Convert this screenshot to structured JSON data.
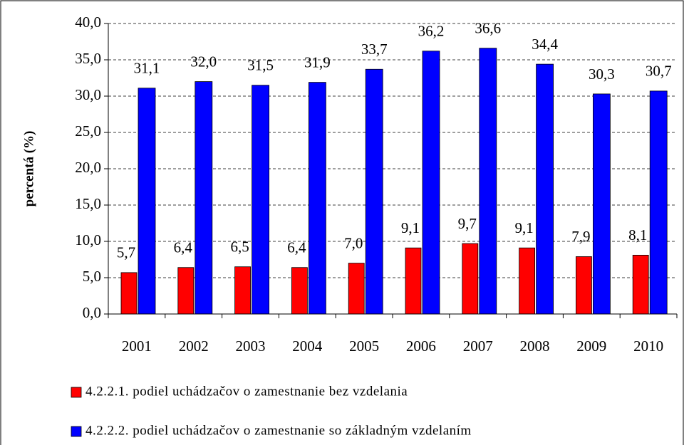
{
  "chart_data": {
    "type": "bar",
    "y_label": "percentá (%)",
    "categories": [
      "2001",
      "2002",
      "2003",
      "2004",
      "2005",
      "2006",
      "2007",
      "2008",
      "2009",
      "2010"
    ],
    "series": [
      {
        "name": "4.2.2.1. podiel uchádzačov o zamestnanie bez vzdelania",
        "color": "#ff0000",
        "values": [
          5.7,
          6.4,
          6.5,
          6.4,
          7.0,
          9.1,
          9.7,
          9.1,
          7.9,
          8.1
        ],
        "value_labels": [
          "5,7",
          "6,4",
          "6,5",
          "6,4",
          "7,0",
          "9,1",
          "9,7",
          "9,1",
          "7,9",
          "8,1"
        ]
      },
      {
        "name": "4.2.2.2. podiel uchádzačov o zamestnanie so základným vzdelaním",
        "color": "#0000ff",
        "values": [
          31.1,
          32.0,
          31.5,
          31.9,
          33.7,
          36.2,
          36.6,
          34.4,
          30.3,
          30.7
        ],
        "value_labels": [
          "31,1",
          "32,0",
          "31,5",
          "31,9",
          "33,7",
          "36,2",
          "36,6",
          "34,4",
          "30,3",
          "30,7"
        ]
      }
    ],
    "ylim": [
      0,
      40
    ],
    "yticks": [
      {
        "value": 0,
        "label": "0,0"
      },
      {
        "value": 5,
        "label": "5,0"
      },
      {
        "value": 10,
        "label": "10,0"
      },
      {
        "value": 15,
        "label": "15,0"
      },
      {
        "value": 20,
        "label": "20,0"
      },
      {
        "value": 25,
        "label": "25,0"
      },
      {
        "value": 30,
        "label": "30,0"
      },
      {
        "value": 35,
        "label": "35,0"
      },
      {
        "value": 40,
        "label": "40,0"
      }
    ],
    "grid": true
  }
}
